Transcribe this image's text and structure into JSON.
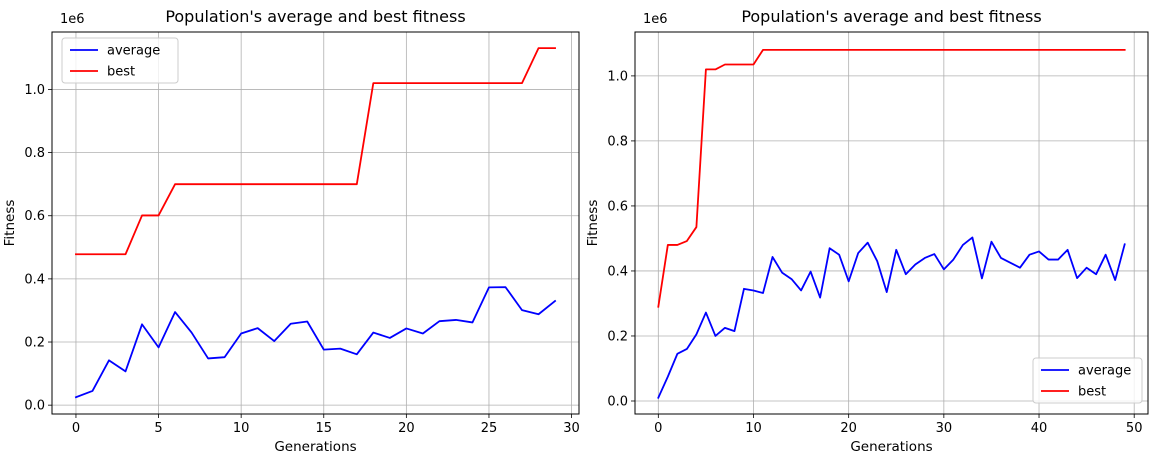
{
  "chart_data": [
    {
      "type": "line",
      "title": "Population's average and best fitness",
      "xlabel": "Generations",
      "ylabel": "Fitness",
      "y_offset_label": "1e6",
      "xlim": [
        -1.45,
        30.45
      ],
      "ylim": [
        -0.028,
        1.182
      ],
      "xticks": [
        0,
        5,
        10,
        15,
        20,
        25,
        30
      ],
      "yticks": [
        0.0,
        0.2,
        0.4,
        0.6,
        0.8,
        1.0
      ],
      "xtick_labels": [
        "0",
        "5",
        "10",
        "15",
        "20",
        "25",
        "30"
      ],
      "ytick_labels": [
        "0.0",
        "0.2",
        "0.4",
        "0.6",
        "0.8",
        "1.0"
      ],
      "grid": true,
      "legend_position": "upper-left",
      "series": [
        {
          "name": "average",
          "color": "#0000ff",
          "x": [
            0,
            1,
            2,
            3,
            4,
            5,
            6,
            7,
            8,
            9,
            10,
            11,
            12,
            13,
            14,
            15,
            16,
            17,
            18,
            19,
            20,
            21,
            22,
            23,
            24,
            25,
            26,
            27,
            28,
            29
          ],
          "values": [
            0.025,
            0.045,
            0.142,
            0.107,
            0.256,
            0.183,
            0.295,
            0.23,
            0.148,
            0.152,
            0.227,
            0.244,
            0.203,
            0.258,
            0.265,
            0.176,
            0.179,
            0.161,
            0.23,
            0.213,
            0.243,
            0.227,
            0.266,
            0.27,
            0.262,
            0.373,
            0.374,
            0.301,
            0.288,
            0.33
          ]
        },
        {
          "name": "best",
          "color": "#ff0000",
          "x": [
            0,
            1,
            2,
            3,
            4,
            5,
            6,
            7,
            8,
            9,
            10,
            11,
            12,
            13,
            14,
            15,
            16,
            17,
            18,
            19,
            20,
            21,
            22,
            23,
            24,
            25,
            26,
            27,
            28,
            29
          ],
          "values": [
            0.478,
            0.478,
            0.478,
            0.478,
            0.601,
            0.601,
            0.7,
            0.7,
            0.7,
            0.7,
            0.7,
            0.7,
            0.7,
            0.7,
            0.7,
            0.7,
            0.7,
            0.7,
            1.02,
            1.02,
            1.02,
            1.02,
            1.02,
            1.02,
            1.02,
            1.02,
            1.02,
            1.02,
            1.131,
            1.131
          ]
        }
      ]
    },
    {
      "type": "line",
      "title": "Population's average and best fitness",
      "xlabel": "Generations",
      "ylabel": "Fitness",
      "y_offset_label": "1e6",
      "xlim": [
        -2.45,
        51.45
      ],
      "ylim": [
        -0.04,
        1.135
      ],
      "xticks": [
        0,
        10,
        20,
        30,
        40,
        50
      ],
      "yticks": [
        0.0,
        0.2,
        0.4,
        0.6,
        0.8,
        1.0
      ],
      "xtick_labels": [
        "0",
        "10",
        "20",
        "30",
        "40",
        "50"
      ],
      "ytick_labels": [
        "0.0",
        "0.2",
        "0.4",
        "0.6",
        "0.8",
        "1.0"
      ],
      "grid": true,
      "legend_position": "lower-right",
      "series": [
        {
          "name": "average",
          "color": "#0000ff",
          "x": [
            0,
            1,
            2,
            3,
            4,
            5,
            6,
            7,
            8,
            9,
            10,
            11,
            12,
            13,
            14,
            15,
            16,
            17,
            18,
            19,
            20,
            21,
            22,
            23,
            24,
            25,
            26,
            27,
            28,
            29,
            30,
            31,
            32,
            33,
            34,
            35,
            36,
            37,
            38,
            39,
            40,
            41,
            42,
            43,
            44,
            45,
            46,
            47,
            48,
            49
          ],
          "values": [
            0.01,
            0.075,
            0.145,
            0.16,
            0.205,
            0.272,
            0.2,
            0.225,
            0.215,
            0.345,
            0.34,
            0.332,
            0.443,
            0.395,
            0.375,
            0.34,
            0.398,
            0.318,
            0.47,
            0.45,
            0.368,
            0.455,
            0.487,
            0.43,
            0.335,
            0.465,
            0.39,
            0.42,
            0.44,
            0.452,
            0.405,
            0.435,
            0.48,
            0.503,
            0.377,
            0.49,
            0.44,
            0.425,
            0.41,
            0.45,
            0.46,
            0.435,
            0.435,
            0.465,
            0.378,
            0.41,
            0.39,
            0.45,
            0.372,
            0.482
          ]
        },
        {
          "name": "best",
          "color": "#ff0000",
          "x": [
            0,
            1,
            2,
            3,
            4,
            5,
            6,
            7,
            8,
            9,
            10,
            11,
            12,
            13,
            14,
            15,
            16,
            17,
            18,
            19,
            20,
            21,
            22,
            23,
            24,
            25,
            26,
            27,
            28,
            29,
            30,
            31,
            32,
            33,
            34,
            35,
            36,
            37,
            38,
            39,
            40,
            41,
            42,
            43,
            44,
            45,
            46,
            47,
            48,
            49
          ],
          "values": [
            0.29,
            0.48,
            0.48,
            0.492,
            0.535,
            1.02,
            1.02,
            1.035,
            1.035,
            1.035,
            1.035,
            1.08,
            1.08,
            1.08,
            1.08,
            1.08,
            1.08,
            1.08,
            1.08,
            1.08,
            1.08,
            1.08,
            1.08,
            1.08,
            1.08,
            1.08,
            1.08,
            1.08,
            1.08,
            1.08,
            1.08,
            1.08,
            1.08,
            1.08,
            1.08,
            1.08,
            1.08,
            1.08,
            1.08,
            1.08,
            1.08,
            1.08,
            1.08,
            1.08,
            1.08,
            1.08,
            1.08,
            1.08,
            1.08,
            1.08
          ]
        }
      ]
    }
  ]
}
